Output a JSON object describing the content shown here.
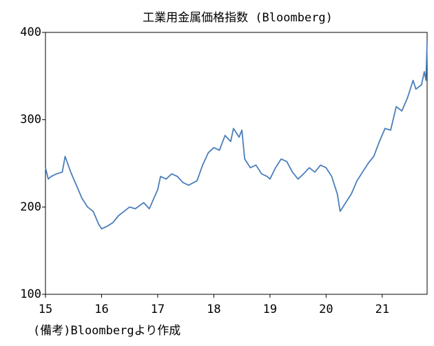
{
  "chart_data": {
    "type": "line",
    "title": "工業用金属価格指数 (Bloomberg)",
    "note": "(備考)Bloombergより作成",
    "x": [
      15.0,
      15.05,
      15.1,
      15.2,
      15.3,
      15.35,
      15.45,
      15.55,
      15.65,
      15.75,
      15.85,
      15.95,
      16.0,
      16.1,
      16.2,
      16.3,
      16.4,
      16.5,
      16.6,
      16.75,
      16.85,
      17.0,
      17.05,
      17.15,
      17.25,
      17.35,
      17.45,
      17.55,
      17.7,
      17.8,
      17.9,
      18.0,
      18.1,
      18.2,
      18.3,
      18.35,
      18.45,
      18.5,
      18.55,
      18.65,
      18.75,
      18.85,
      18.95,
      19.0,
      19.1,
      19.2,
      19.3,
      19.4,
      19.5,
      19.6,
      19.7,
      19.8,
      19.9,
      20.0,
      20.1,
      20.2,
      20.25,
      20.35,
      20.45,
      20.55,
      20.65,
      20.75,
      20.85,
      20.95,
      21.05,
      21.15,
      21.25,
      21.35,
      21.45,
      21.55,
      21.6,
      21.7,
      21.75,
      21.78,
      21.8
    ],
    "series": [
      {
        "name": "工業用金属価格指数",
        "color": "#4a7ebb",
        "values": [
          245,
          232,
          235,
          238,
          240,
          258,
          240,
          225,
          210,
          200,
          195,
          180,
          175,
          178,
          182,
          190,
          195,
          200,
          198,
          205,
          198,
          220,
          235,
          232,
          238,
          235,
          228,
          225,
          230,
          248,
          262,
          268,
          265,
          282,
          275,
          290,
          280,
          288,
          255,
          245,
          248,
          238,
          235,
          232,
          245,
          255,
          252,
          240,
          232,
          238,
          245,
          240,
          248,
          245,
          235,
          215,
          195,
          205,
          215,
          230,
          240,
          250,
          258,
          275,
          290,
          288,
          315,
          310,
          325,
          345,
          335,
          340,
          355,
          345,
          390
        ]
      }
    ],
    "xlim": [
      15,
      21.8
    ],
    "xticks": [
      15,
      16,
      17,
      18,
      19,
      20,
      21
    ],
    "ylim": [
      100,
      400
    ],
    "yticks": [
      100,
      200,
      300,
      400
    ],
    "grid": false
  }
}
